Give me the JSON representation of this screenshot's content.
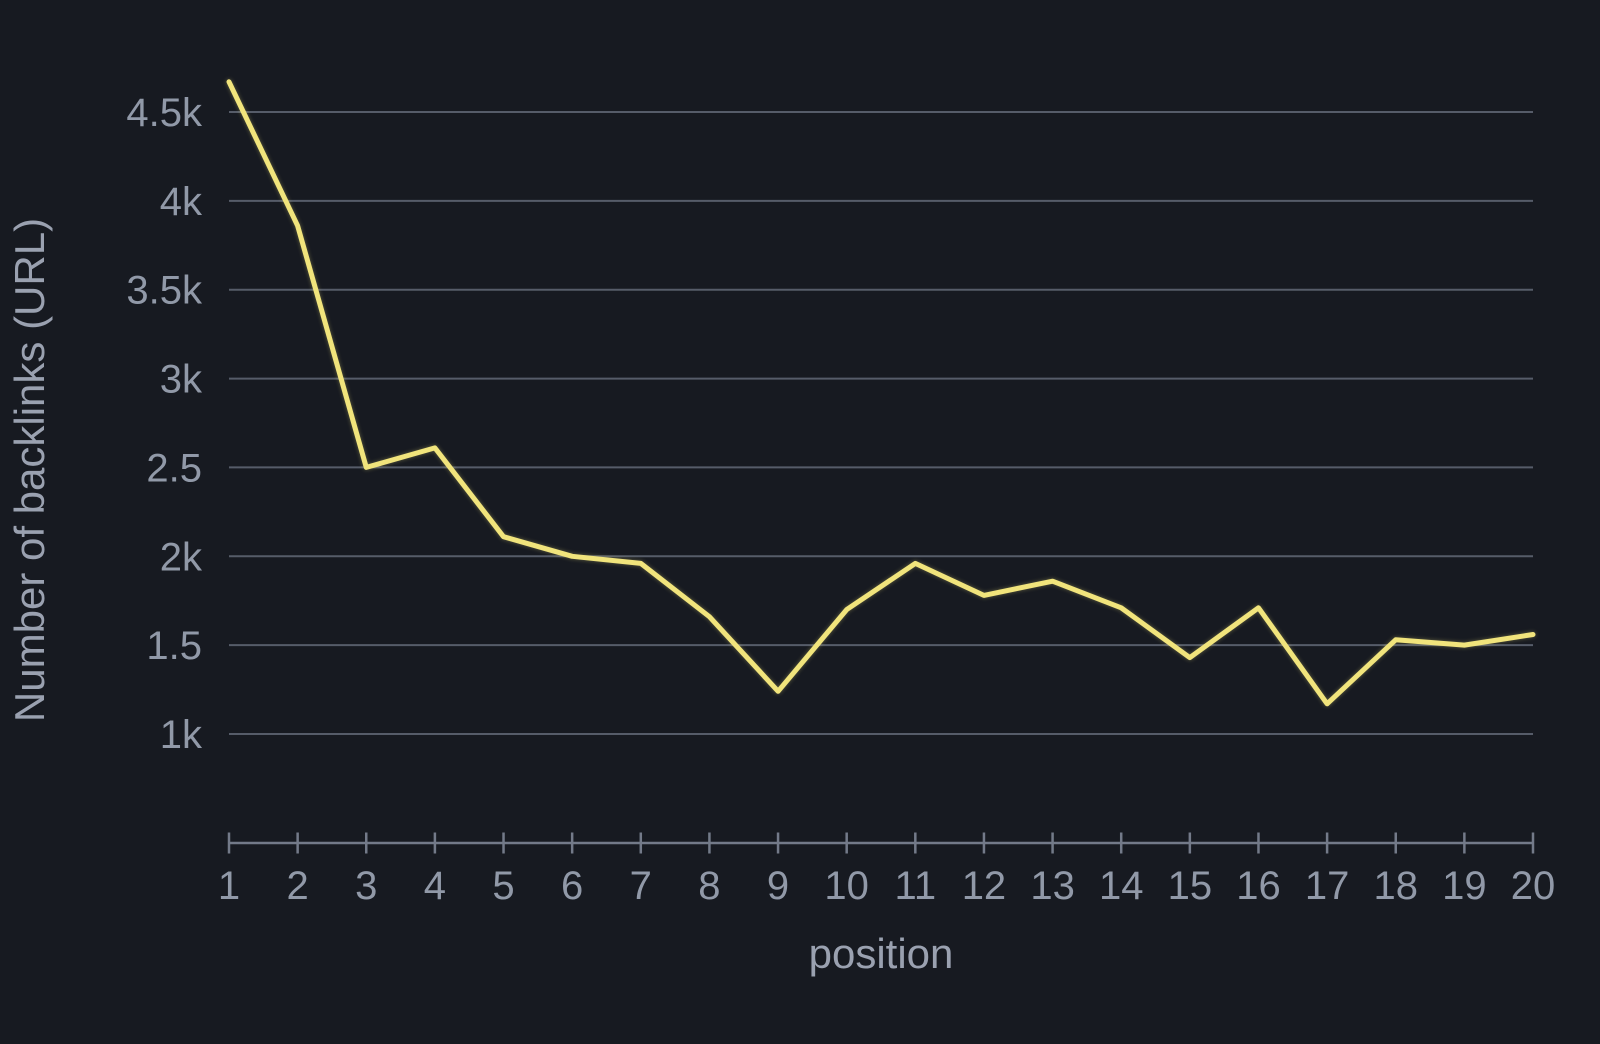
{
  "chart_data": {
    "type": "line",
    "title": "",
    "xlabel": "position",
    "ylabel": "Number of backlinks (URL)",
    "x": [
      1,
      2,
      3,
      4,
      5,
      6,
      7,
      8,
      9,
      10,
      11,
      12,
      13,
      14,
      15,
      16,
      17,
      18,
      19,
      20
    ],
    "series": [
      {
        "name": "Number of backlinks (URL)",
        "values": [
          4670,
          3860,
          2500,
          2610,
          2110,
          2000,
          1960,
          1660,
          1240,
          1700,
          1960,
          1780,
          1860,
          1710,
          1430,
          1710,
          1170,
          1530,
          1500,
          1560
        ]
      }
    ],
    "x_tick_labels": [
      "1",
      "2",
      "3",
      "4",
      "5",
      "6",
      "7",
      "8",
      "9",
      "10",
      "11",
      "12",
      "13",
      "14",
      "15",
      "16",
      "17",
      "18",
      "19",
      "20"
    ],
    "y_ticks": [
      {
        "value": 4500,
        "label": "4.5k"
      },
      {
        "value": 4000,
        "label": "4k"
      },
      {
        "value": 3500,
        "label": "3.5k"
      },
      {
        "value": 3000,
        "label": "3k"
      },
      {
        "value": 2500,
        "label": "2.5"
      },
      {
        "value": 2000,
        "label": "2k"
      },
      {
        "value": 1500,
        "label": "1.5"
      },
      {
        "value": 1000,
        "label": "1k"
      }
    ],
    "xlim": [
      1,
      20
    ],
    "ylim": [
      1000,
      4500
    ],
    "grid": true,
    "legend": false,
    "colors": {
      "background": "#171a21",
      "line": "#f1e47c",
      "gridline": "#565c69",
      "axis": "#737a89",
      "tick_text": "#9199a8",
      "title_text": "#9aa1b0"
    }
  }
}
